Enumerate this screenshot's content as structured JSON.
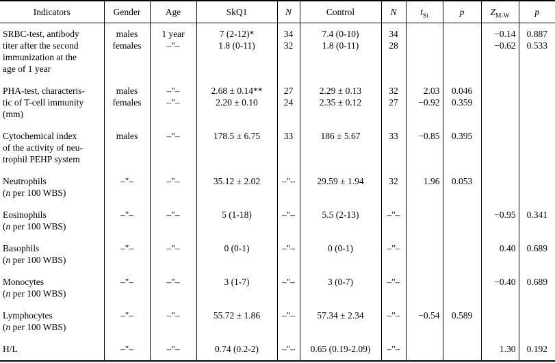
{
  "colors": {
    "text": "#000000",
    "background": "#ffffff",
    "rule": "#000000"
  },
  "table": {
    "header": [
      {
        "key": "indicators",
        "label": "Indicators"
      },
      {
        "key": "gender",
        "label": "Gender"
      },
      {
        "key": "age",
        "label": "Age"
      },
      {
        "key": "skq1",
        "label": "SkQ1"
      },
      {
        "key": "n_skq1",
        "label": "N",
        "italic": true
      },
      {
        "key": "control",
        "label": "Control"
      },
      {
        "key": "n_control",
        "label": "N",
        "italic": true
      },
      {
        "key": "t_st",
        "label": "t",
        "italic": true,
        "sub": "St"
      },
      {
        "key": "p_t",
        "label": "p",
        "italic": true
      },
      {
        "key": "z_mw",
        "label": "Z",
        "italic": true,
        "sub": "M-W"
      },
      {
        "key": "p_z",
        "label": "p",
        "italic": true
      }
    ],
    "rows": [
      {
        "indicator": "SRBC-test, antibody\ntiter after the second\nimmunization at the\nage of 1 year",
        "gender": [
          "males",
          "females"
        ],
        "age": [
          "1 year",
          "–\"–"
        ],
        "skq1": [
          "7 (2-12)*",
          "1.8 (0-11)"
        ],
        "n1": [
          "34",
          "32"
        ],
        "control": [
          "7.4 (0-10)",
          "1.8 (0-11)"
        ],
        "n2": [
          "34",
          "28"
        ],
        "t": [],
        "p1": [],
        "z": [
          "−0.14",
          "−0.62"
        ],
        "p2": [
          "0.887",
          "0.533"
        ]
      },
      {
        "indicator": "PHA-test, characteris-\ntic of T-cell immunity\n(mm)",
        "gender": [
          "males",
          "females"
        ],
        "age": [
          "–\"–",
          "–\"–"
        ],
        "skq1": [
          "2.68 ± 0.14**",
          "2.20 ± 0.10"
        ],
        "n1": [
          "27",
          "24"
        ],
        "control": [
          "2.29 ± 0.13",
          "2.35 ± 0.12"
        ],
        "n2": [
          "32",
          "27"
        ],
        "t": [
          "2.03",
          "−0.92"
        ],
        "p1": [
          "0.046",
          "0.359"
        ],
        "z": [],
        "p2": []
      },
      {
        "indicator": "Cytochemical index\nof the activity of neu-\ntrophil PEHP system",
        "gender": [
          "males"
        ],
        "age": [
          "–\"–"
        ],
        "skq1": [
          "178.5 ± 6.75"
        ],
        "n1": [
          "33"
        ],
        "control": [
          "186 ± 5.67"
        ],
        "n2": [
          "33"
        ],
        "t": [
          "−0.85"
        ],
        "p1": [
          "0.395"
        ],
        "z": [],
        "p2": []
      },
      {
        "indicator": "Neutrophils",
        "note_var": "n",
        "note_text": "per 100 WBS",
        "gender": [
          "–\"–"
        ],
        "age": [
          "–\"–"
        ],
        "skq1": [
          "35.12 ± 2.02"
        ],
        "n1": [
          "–\"–"
        ],
        "control": [
          "29.59 ± 1.94"
        ],
        "n2": [
          "32"
        ],
        "t": [
          "1.96"
        ],
        "p1": [
          "0.053"
        ],
        "z": [],
        "p2": []
      },
      {
        "indicator": "Eosinophils",
        "note_var": "n",
        "note_text": "per 100 WBS",
        "gender": [
          "–\"–"
        ],
        "age": [
          "–\"–"
        ],
        "skq1": [
          "5 (1-18)"
        ],
        "n1": [
          "–\"–"
        ],
        "control": [
          "5.5 (2-13)"
        ],
        "n2": [
          "–\"–"
        ],
        "t": [],
        "p1": [],
        "z": [
          "−0.95"
        ],
        "p2": [
          "0.341"
        ]
      },
      {
        "indicator": "Basophils",
        "note_var": "n",
        "note_text": "per 100 WBS",
        "gender": [
          "–\"–"
        ],
        "age": [
          "–\"–"
        ],
        "skq1": [
          "0 (0-1)"
        ],
        "n1": [
          "–\"–"
        ],
        "control": [
          "0 (0-1)"
        ],
        "n2": [
          "–\"–"
        ],
        "t": [],
        "p1": [],
        "z": [
          "0.40"
        ],
        "p2": [
          "0.689"
        ]
      },
      {
        "indicator": "Monocytes",
        "note_var": "n",
        "note_text": "per 100 WBS",
        "gender": [
          "–\"–"
        ],
        "age": [
          "–\"–"
        ],
        "skq1": [
          "3 (1-7)"
        ],
        "n1": [
          "–\"–"
        ],
        "control": [
          "3 (0-7)"
        ],
        "n2": [
          "–\"–"
        ],
        "t": [],
        "p1": [],
        "z": [
          "−0.40"
        ],
        "p2": [
          "0.689"
        ]
      },
      {
        "indicator": "Lymphocytes",
        "note_var": "n",
        "note_text": "per 100 WBS",
        "gender": [
          "–\"–"
        ],
        "age": [
          "–\"–"
        ],
        "skq1": [
          "55.72 ± 1.86"
        ],
        "n1": [
          "–\"–"
        ],
        "control": [
          "57.34 ± 2.34"
        ],
        "n2": [
          "–\"–"
        ],
        "t": [
          "−0.54"
        ],
        "p1": [
          "0.589"
        ],
        "z": [],
        "p2": []
      },
      {
        "indicator": "H/L",
        "gender": [
          "–\"–"
        ],
        "age": [
          "–\"–"
        ],
        "skq1": [
          "0.74 (0.2-2)"
        ],
        "n1": [
          "–\"–"
        ],
        "control": [
          "0.65 (0.19-2.09)"
        ],
        "n2": [
          "–\"–"
        ],
        "t": [],
        "p1": [],
        "z": [
          "1.30"
        ],
        "p2": [
          "0.192"
        ]
      }
    ]
  }
}
